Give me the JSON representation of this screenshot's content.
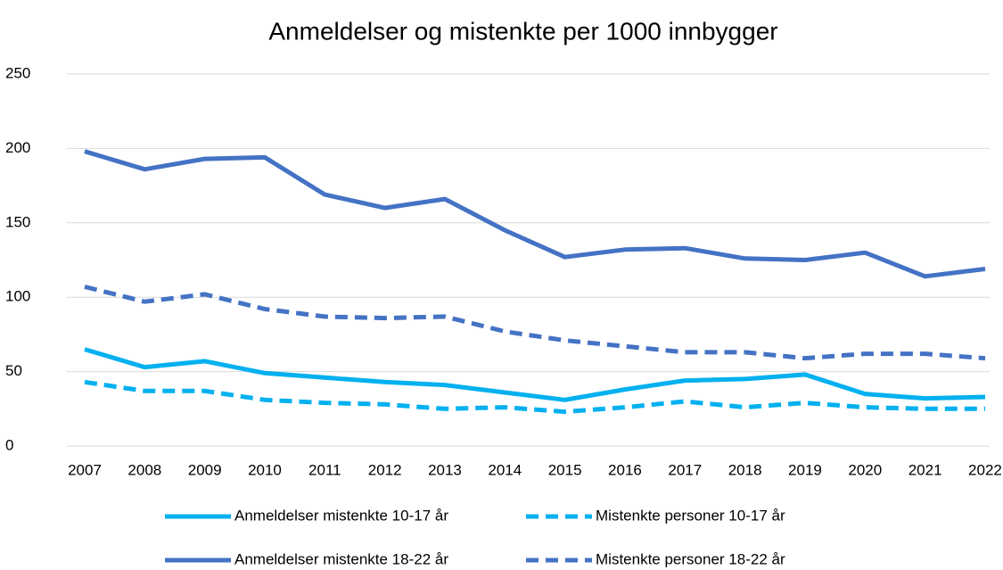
{
  "chart_data": {
    "type": "line",
    "title": "Anmeldelser og mistenkte per 1000 innbygger",
    "categories": [
      "2007",
      "2008",
      "2009",
      "2010",
      "2011",
      "2012",
      "2013",
      "2014",
      "2015",
      "2016",
      "2017",
      "2018",
      "2019",
      "2020",
      "2021",
      "2022"
    ],
    "ylim": [
      0,
      250
    ],
    "yticks": [
      0,
      50,
      100,
      150,
      200,
      250
    ],
    "grid": true,
    "legend": "bottom",
    "series": [
      {
        "name": "Anmeldelser mistenkte 10-17 år",
        "color": "#00b0f0",
        "dashed": false,
        "values": [
          65,
          53,
          57,
          49,
          46,
          43,
          41,
          36,
          31,
          38,
          44,
          45,
          48,
          35,
          32,
          33
        ]
      },
      {
        "name": "Mistenkte personer 10-17 år",
        "color": "#00b0f0",
        "dashed": true,
        "values": [
          43,
          37,
          37,
          31,
          29,
          28,
          25,
          26,
          23,
          26,
          30,
          26,
          29,
          26,
          25,
          25
        ]
      },
      {
        "name": "Anmeldelser mistenkte 18-22 år",
        "color": "#4472c4",
        "dashed": false,
        "values": [
          198,
          186,
          193,
          194,
          169,
          160,
          166,
          145,
          127,
          132,
          133,
          126,
          125,
          130,
          114,
          119
        ]
      },
      {
        "name": "Mistenkte personer 18-22 år",
        "color": "#4472c4",
        "dashed": true,
        "values": [
          107,
          97,
          102,
          92,
          87,
          86,
          87,
          77,
          71,
          67,
          63,
          63,
          59,
          62,
          62,
          59
        ]
      }
    ]
  }
}
